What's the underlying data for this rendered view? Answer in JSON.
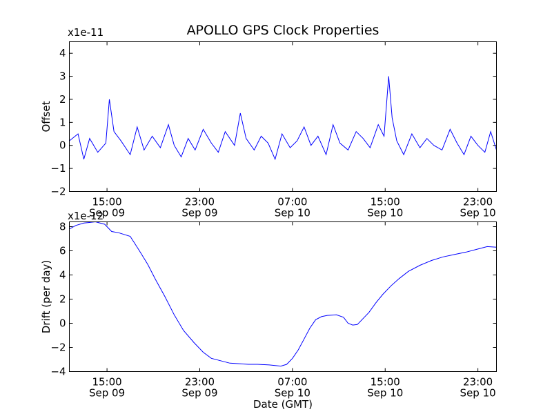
{
  "figure": {
    "title": "APOLLO GPS Clock Properties"
  },
  "chart_data": [
    {
      "type": "line",
      "name": "offset",
      "title": "APOLLO GPS Clock Properties",
      "xlabel": "",
      "ylabel": "Offset",
      "y_scale_label": "x1e-11",
      "x_hours_range": [
        11.75,
        48.6
      ],
      "ylim": [
        -2,
        4.5
      ],
      "y_ticks": [
        -2,
        -1,
        0,
        1,
        2,
        3,
        4
      ],
      "y_tick_labels": [
        "−2",
        "−1",
        "0",
        "1",
        "2",
        "3",
        "4"
      ],
      "x_ticks_hours": [
        15,
        23,
        31,
        39,
        47
      ],
      "x_tick_times": [
        "15:00",
        "23:00",
        "07:00",
        "15:00",
        "23:00"
      ],
      "x_tick_dates": [
        "Sep 09",
        "Sep 09",
        "Sep 10",
        "Sep 10",
        "Sep 10"
      ],
      "series": [
        {
          "name": "Offset",
          "color": "#0000ff",
          "x": [
            11.75,
            12.5,
            13.0,
            13.5,
            14.2,
            14.9,
            15.2,
            15.6,
            16.2,
            17.0,
            17.6,
            18.2,
            18.9,
            19.6,
            20.3,
            20.8,
            21.4,
            22.0,
            22.6,
            23.3,
            24.0,
            24.6,
            25.2,
            26.0,
            26.5,
            27.0,
            27.7,
            28.3,
            28.9,
            29.5,
            30.1,
            30.8,
            31.4,
            32.0,
            32.6,
            33.2,
            33.9,
            34.5,
            35.1,
            35.8,
            36.5,
            37.1,
            37.7,
            38.4,
            38.9,
            39.3,
            39.6,
            40.0,
            40.6,
            41.3,
            42.0,
            42.6,
            43.2,
            43.9,
            44.6,
            45.2,
            45.8,
            46.4,
            47.0,
            47.6,
            48.1,
            48.6
          ],
          "y": [
            0.2,
            0.5,
            -0.6,
            0.3,
            -0.3,
            0.1,
            2.0,
            0.6,
            0.2,
            -0.4,
            0.8,
            -0.2,
            0.4,
            -0.1,
            0.9,
            0.0,
            -0.5,
            0.3,
            -0.2,
            0.7,
            0.1,
            -0.3,
            0.6,
            0.0,
            1.4,
            0.3,
            -0.2,
            0.4,
            0.1,
            -0.6,
            0.5,
            -0.1,
            0.2,
            0.8,
            0.0,
            0.4,
            -0.4,
            0.9,
            0.1,
            -0.2,
            0.6,
            0.3,
            -0.1,
            0.9,
            0.4,
            3.0,
            1.2,
            0.2,
            -0.4,
            0.5,
            -0.1,
            0.3,
            0.0,
            -0.2,
            0.7,
            0.1,
            -0.4,
            0.4,
            0.0,
            -0.3,
            0.6,
            -0.2
          ]
        }
      ]
    },
    {
      "type": "line",
      "name": "drift",
      "title": "",
      "xlabel": "Date (GMT)",
      "ylabel": "Drift (per day)",
      "y_scale_label": "x1e-12",
      "x_hours_range": [
        11.75,
        48.6
      ],
      "ylim": [
        -4,
        8.4
      ],
      "y_ticks": [
        -4,
        -2,
        0,
        2,
        4,
        6,
        8
      ],
      "y_tick_labels": [
        "−4",
        "−2",
        "0",
        "2",
        "4",
        "6",
        "8"
      ],
      "x_ticks_hours": [
        15,
        23,
        31,
        39,
        47
      ],
      "x_tick_times": [
        "15:00",
        "23:00",
        "07:00",
        "15:00",
        "23:00"
      ],
      "x_tick_dates": [
        "Sep 09",
        "Sep 09",
        "Sep 10",
        "Sep 10",
        "Sep 10"
      ],
      "series": [
        {
          "name": "Drift",
          "color": "#0000ff",
          "x": [
            11.75,
            12.3,
            13.0,
            14.0,
            14.8,
            15.4,
            16.0,
            17.0,
            17.8,
            18.5,
            19.2,
            20.0,
            20.8,
            21.6,
            22.5,
            23.3,
            24.0,
            24.8,
            25.6,
            26.4,
            27.2,
            28.0,
            29.0,
            30.0,
            30.5,
            31.0,
            31.5,
            32.0,
            32.5,
            33.0,
            33.5,
            34.0,
            34.8,
            35.4,
            35.8,
            36.2,
            36.6,
            37.0,
            37.6,
            38.2,
            38.8,
            39.5,
            40.2,
            41.0,
            42.0,
            43.0,
            44.0,
            45.0,
            46.0,
            47.0,
            47.8,
            48.6
          ],
          "y": [
            7.8,
            8.1,
            8.3,
            8.4,
            8.2,
            7.6,
            7.5,
            7.2,
            6.0,
            4.9,
            3.6,
            2.2,
            0.7,
            -0.6,
            -1.6,
            -2.4,
            -2.9,
            -3.1,
            -3.3,
            -3.35,
            -3.4,
            -3.4,
            -3.45,
            -3.55,
            -3.4,
            -2.9,
            -2.2,
            -1.3,
            -0.4,
            0.3,
            0.55,
            0.65,
            0.7,
            0.5,
            0.0,
            -0.15,
            -0.1,
            0.3,
            0.9,
            1.7,
            2.4,
            3.1,
            3.7,
            4.3,
            4.8,
            5.2,
            5.5,
            5.7,
            5.9,
            6.15,
            6.35,
            6.3
          ]
        }
      ]
    }
  ]
}
